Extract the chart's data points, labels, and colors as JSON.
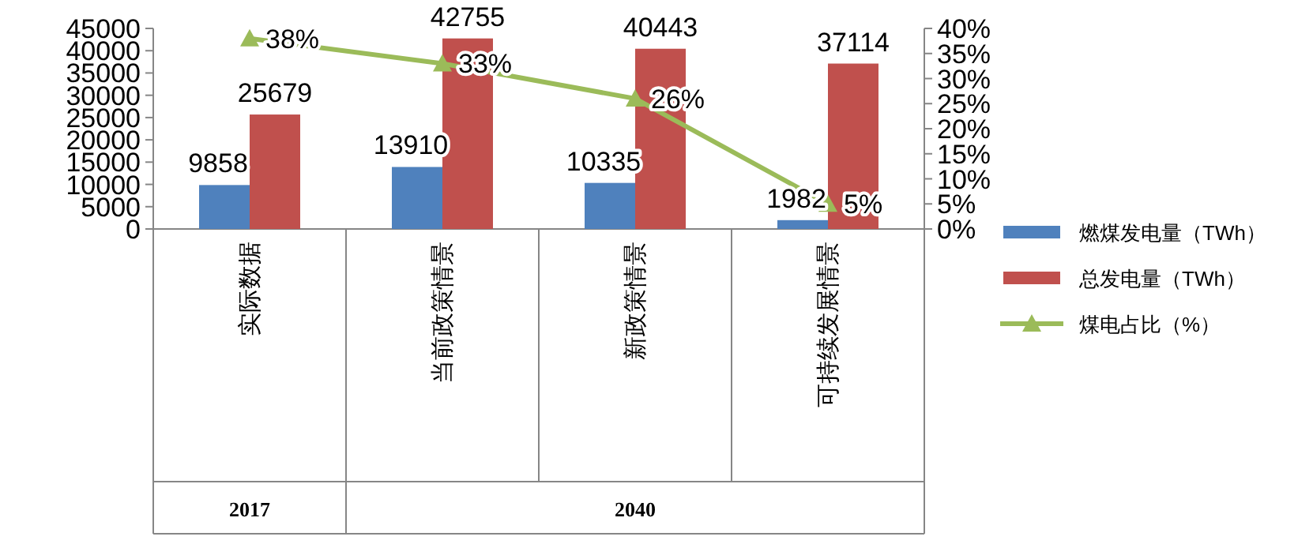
{
  "chart_data": {
    "type": "bar",
    "categories": [
      "实际数据",
      "当前政策情景",
      "新政策情景",
      "可持续发展情景"
    ],
    "series": [
      {
        "name": "燃煤发电量（TWh）",
        "color": "#4f81bd",
        "values": [
          9858,
          13910,
          10335,
          1982
        ],
        "value_labels": [
          "9858",
          "13910",
          "10335",
          "1982"
        ]
      },
      {
        "name": "总发电量（TWh）",
        "color": "#c0504d",
        "values": [
          25679,
          42755,
          40443,
          37114
        ],
        "value_labels": [
          "25679",
          "42755",
          "40443",
          "37114"
        ]
      },
      {
        "name": "煤电占比（%）",
        "type": "line",
        "axis": "y2",
        "marker": "triangle",
        "color": "#9bbb59",
        "values": [
          38,
          33,
          26,
          5
        ],
        "value_labels": [
          "38%",
          "33%",
          "26%",
          "5%"
        ]
      }
    ],
    "ylim": [
      0,
      45000
    ],
    "yticks": [
      0,
      5000,
      10000,
      15000,
      20000,
      25000,
      30000,
      35000,
      40000,
      45000
    ],
    "y2lim": [
      0,
      40
    ],
    "y2ticks": [
      {
        "value": 0,
        "label": "0%"
      },
      {
        "value": 5,
        "label": "5%"
      },
      {
        "value": 10,
        "label": "10%"
      },
      {
        "value": 15,
        "label": "15%"
      },
      {
        "value": 20,
        "label": "20%"
      },
      {
        "value": 25,
        "label": "25%"
      },
      {
        "value": 30,
        "label": "30%"
      },
      {
        "value": 35,
        "label": "35%"
      },
      {
        "value": 40,
        "label": "40%"
      }
    ],
    "annotations": [
      "2017",
      "2040"
    ],
    "legend": "right",
    "grid": false
  }
}
